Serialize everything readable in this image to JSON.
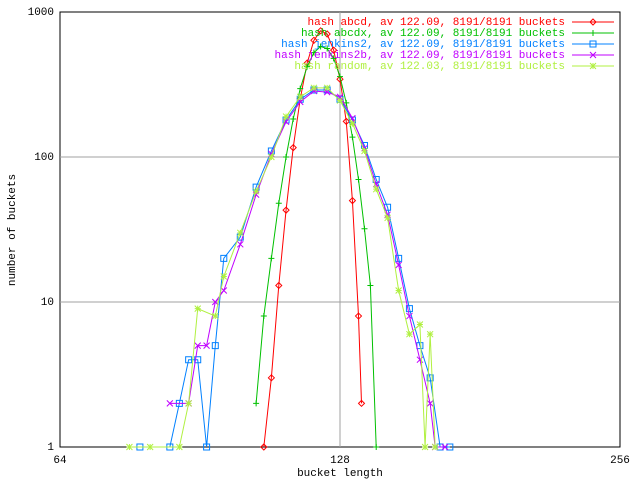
{
  "chart_data": {
    "type": "line",
    "xlabel": "bucket length",
    "ylabel": "number of buckets",
    "xscale": "log",
    "yscale": "log",
    "grid": true,
    "legend": "top-right",
    "xlim": [
      64,
      256
    ],
    "xticks": [
      64,
      128,
      256
    ],
    "ylim": [
      1,
      1000
    ],
    "yticks": [
      1,
      10,
      100,
      1000
    ],
    "series": [
      {
        "name": "hash abcd, av 122.09, 8191/8191 buckets",
        "color": "#ff0000",
        "marker": "diamond",
        "x": [
          106,
          108,
          110,
          112,
          114,
          116,
          118,
          120,
          122,
          124,
          126,
          128,
          130,
          132,
          134,
          135
        ],
        "values": [
          1,
          3,
          13,
          43,
          116,
          252,
          444,
          638,
          742,
          705,
          546,
          344,
          176,
          50,
          8,
          2
        ]
      },
      {
        "name": "hash abcdx, av 122.09, 8191/8191 buckets",
        "color": "#00c000",
        "marker": "plus",
        "x": [
          104,
          106,
          108,
          110,
          112,
          114,
          116,
          118,
          120,
          122,
          124,
          126,
          128,
          130,
          132,
          134,
          136,
          138,
          140
        ],
        "values": [
          2,
          8,
          20,
          48,
          100,
          183,
          296,
          420,
          525,
          578,
          560,
          479,
          358,
          236,
          137,
          70,
          32,
          13,
          1
        ]
      },
      {
        "name": "hash jenkins2, av 122.09, 8191/8191 buckets",
        "color": "#0080ff",
        "marker": "square",
        "x": [
          78,
          84,
          86,
          88,
          90,
          92,
          94,
          96,
          100,
          104,
          108,
          112,
          116,
          120,
          124,
          128,
          132,
          136,
          140,
          144,
          148,
          152,
          156,
          160,
          164,
          168
        ],
        "values": [
          1,
          1,
          2,
          4,
          4,
          1,
          5,
          20,
          28,
          62,
          110,
          180,
          250,
          290,
          290,
          250,
          180,
          120,
          70,
          45,
          20,
          9,
          5,
          3,
          1,
          1
        ]
      },
      {
        "name": "hash jenkins2b, av 122.09, 8191/8191 buckets",
        "color": "#c000ff",
        "marker": "cross",
        "x": [
          84,
          88,
          90,
          92,
          94,
          96,
          100,
          104,
          108,
          112,
          116,
          120,
          124,
          128,
          132,
          136,
          140,
          144,
          148,
          152,
          156,
          160,
          162,
          166
        ],
        "values": [
          2,
          2,
          5,
          5,
          10,
          12,
          25,
          55,
          105,
          175,
          240,
          285,
          280,
          260,
          185,
          115,
          65,
          40,
          18,
          8,
          4,
          2,
          1,
          1
        ]
      },
      {
        "name": "hash random, av 122.03, 8191/8191 buckets",
        "color": "#b0f040",
        "marker": "star",
        "x": [
          76,
          80,
          86,
          88,
          90,
          94,
          96,
          100,
          104,
          108,
          112,
          116,
          120,
          124,
          128,
          132,
          136,
          140,
          144,
          148,
          152,
          156,
          158,
          160,
          162
        ],
        "values": [
          1,
          1,
          1,
          2,
          9,
          8,
          15,
          30,
          58,
          100,
          190,
          260,
          300,
          300,
          245,
          170,
          110,
          60,
          38,
          12,
          6,
          7,
          1,
          6,
          1
        ]
      }
    ]
  }
}
